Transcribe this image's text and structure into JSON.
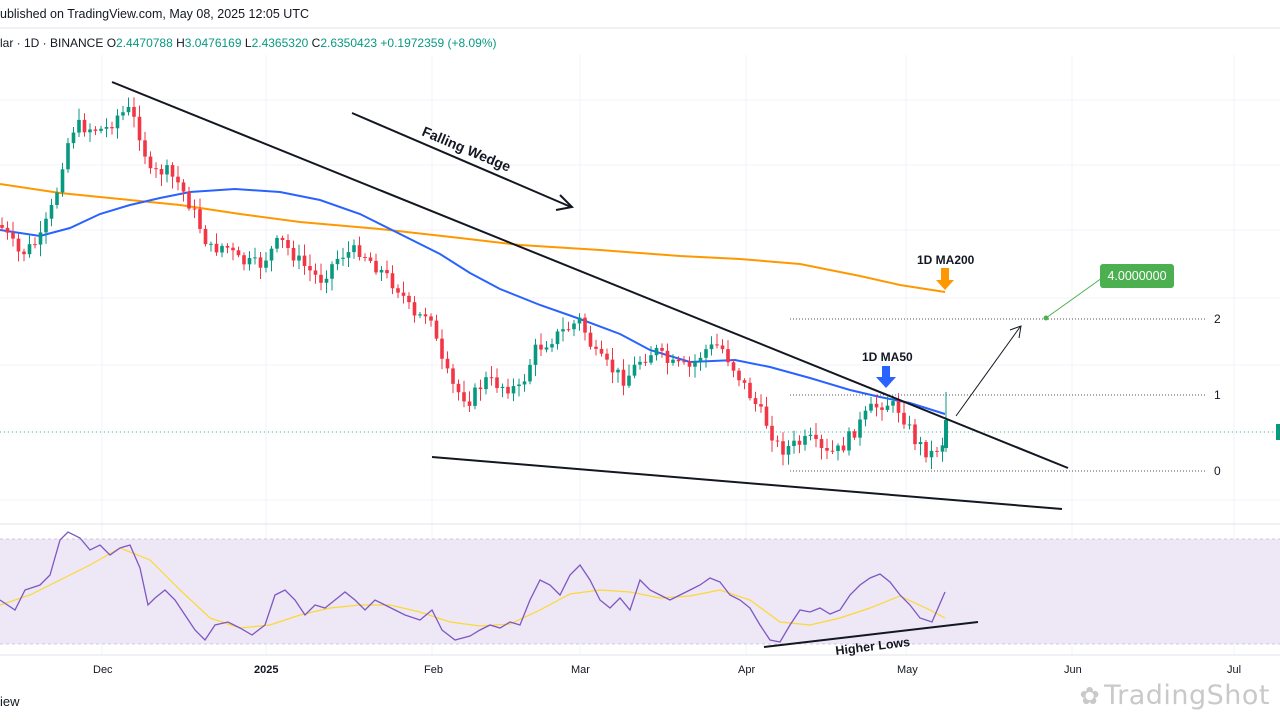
{
  "header": {
    "published": "ublished on TradingView.com, May 08, 2025 12:05 UTC",
    "symbol": "lar · 1D · BINANCE",
    "o_label": "O",
    "o_value": "2.4470788",
    "h_label": "H",
    "h_value": "3.0476169",
    "l_label": "L",
    "l_value": "2.4365320",
    "c_label": "C",
    "c_value": "2.6350423",
    "change": "+0.1972359 (+8.09%)"
  },
  "footer": {
    "left_text": "iew",
    "watermark": "TradingShot"
  },
  "colors": {
    "up": "#089981",
    "down": "#f23645",
    "ma50": "#2962ff",
    "ma200": "#ff9800",
    "rsi": "#7e57c2",
    "rsi_ma": "#fdd835",
    "rsi_bg": "#ede7f6",
    "target": "#4caf50"
  },
  "chart_data": {
    "type": "candlestick",
    "x_axis_labels": [
      "Dec",
      "2025",
      "Feb",
      "Mar",
      "Apr",
      "May",
      "Jun",
      "Jul"
    ],
    "fib_labels": [
      "2",
      "1",
      "0"
    ],
    "annotations": {
      "falling_wedge": "Falling Wedge",
      "ma200_label": "1D MA200",
      "ma50_label": "1D MA50",
      "target_value": "4.0000000",
      "higher_lows": "Higher Lows"
    },
    "series": [
      {
        "name": "1D MA50"
      },
      {
        "name": "1D MA200"
      }
    ],
    "ma50_screen": [
      [
        0,
        230
      ],
      [
        40,
        236
      ],
      [
        70,
        228
      ],
      [
        100,
        214
      ],
      [
        130,
        205
      ],
      [
        160,
        198
      ],
      [
        190,
        192
      ],
      [
        235,
        189
      ],
      [
        280,
        192
      ],
      [
        320,
        200
      ],
      [
        360,
        214
      ],
      [
        400,
        234
      ],
      [
        440,
        254
      ],
      [
        470,
        273
      ],
      [
        500,
        289
      ],
      [
        540,
        305
      ],
      [
        580,
        319
      ],
      [
        620,
        334
      ],
      [
        650,
        350
      ],
      [
        690,
        362
      ],
      [
        735,
        360
      ],
      [
        770,
        367
      ],
      [
        810,
        378
      ],
      [
        850,
        390
      ],
      [
        880,
        397
      ],
      [
        910,
        403
      ],
      [
        945,
        414
      ]
    ],
    "ma200_screen": [
      [
        0,
        184
      ],
      [
        60,
        193
      ],
      [
        120,
        199
      ],
      [
        180,
        205
      ],
      [
        240,
        214
      ],
      [
        300,
        222
      ],
      [
        380,
        229
      ],
      [
        460,
        238
      ],
      [
        520,
        245
      ],
      [
        600,
        250
      ],
      [
        680,
        256
      ],
      [
        740,
        259
      ],
      [
        800,
        264
      ],
      [
        860,
        276
      ],
      [
        900,
        285
      ],
      [
        945,
        292
      ]
    ],
    "rsi_screen": [
      [
        0,
        600
      ],
      [
        15,
        610
      ],
      [
        25,
        590
      ],
      [
        40,
        585
      ],
      [
        50,
        575
      ],
      [
        60,
        540
      ],
      [
        68,
        532
      ],
      [
        80,
        538
      ],
      [
        90,
        550
      ],
      [
        100,
        545
      ],
      [
        110,
        555
      ],
      [
        120,
        548
      ],
      [
        130,
        545
      ],
      [
        140,
        568
      ],
      [
        148,
        605
      ],
      [
        155,
        598
      ],
      [
        165,
        590
      ],
      [
        175,
        600
      ],
      [
        185,
        615
      ],
      [
        195,
        630
      ],
      [
        205,
        640
      ],
      [
        215,
        625
      ],
      [
        228,
        622
      ],
      [
        240,
        628
      ],
      [
        252,
        635
      ],
      [
        265,
        625
      ],
      [
        275,
        595
      ],
      [
        285,
        590
      ],
      [
        295,
        600
      ],
      [
        305,
        615
      ],
      [
        315,
        605
      ],
      [
        325,
        608
      ],
      [
        335,
        600
      ],
      [
        345,
        592
      ],
      [
        355,
        600
      ],
      [
        365,
        610
      ],
      [
        375,
        600
      ],
      [
        385,
        605
      ],
      [
        395,
        610
      ],
      [
        405,
        615
      ],
      [
        420,
        620
      ],
      [
        432,
        610
      ],
      [
        442,
        630
      ],
      [
        455,
        640
      ],
      [
        470,
        636
      ],
      [
        480,
        630
      ],
      [
        490,
        625
      ],
      [
        500,
        628
      ],
      [
        510,
        622
      ],
      [
        520,
        625
      ],
      [
        530,
        600
      ],
      [
        540,
        580
      ],
      [
        550,
        585
      ],
      [
        560,
        595
      ],
      [
        570,
        575
      ],
      [
        580,
        565
      ],
      [
        590,
        580
      ],
      [
        600,
        600
      ],
      [
        610,
        608
      ],
      [
        620,
        598
      ],
      [
        630,
        610
      ],
      [
        640,
        580
      ],
      [
        650,
        590
      ],
      [
        660,
        595
      ],
      [
        670,
        600
      ],
      [
        680,
        595
      ],
      [
        690,
        590
      ],
      [
        700,
        585
      ],
      [
        710,
        578
      ],
      [
        720,
        582
      ],
      [
        730,
        595
      ],
      [
        740,
        600
      ],
      [
        750,
        608
      ],
      [
        760,
        625
      ],
      [
        770,
        640
      ],
      [
        780,
        642
      ],
      [
        790,
        625
      ],
      [
        800,
        610
      ],
      [
        810,
        612
      ],
      [
        820,
        608
      ],
      [
        830,
        614
      ],
      [
        840,
        610
      ],
      [
        850,
        595
      ],
      [
        860,
        585
      ],
      [
        870,
        578
      ],
      [
        880,
        574
      ],
      [
        890,
        582
      ],
      [
        900,
        595
      ],
      [
        910,
        605
      ],
      [
        920,
        618
      ],
      [
        932,
        622
      ],
      [
        945,
        592
      ]
    ],
    "rsi_ma_screen": [
      [
        0,
        605
      ],
      [
        30,
        595
      ],
      [
        60,
        580
      ],
      [
        90,
        565
      ],
      [
        120,
        548
      ],
      [
        150,
        560
      ],
      [
        180,
        590
      ],
      [
        210,
        618
      ],
      [
        240,
        628
      ],
      [
        270,
        625
      ],
      [
        300,
        615
      ],
      [
        330,
        608
      ],
      [
        360,
        605
      ],
      [
        390,
        605
      ],
      [
        420,
        612
      ],
      [
        450,
        622
      ],
      [
        480,
        626
      ],
      [
        510,
        624
      ],
      [
        540,
        610
      ],
      [
        570,
        594
      ],
      [
        600,
        590
      ],
      [
        630,
        592
      ],
      [
        660,
        598
      ],
      [
        690,
        596
      ],
      [
        720,
        590
      ],
      [
        750,
        600
      ],
      [
        780,
        622
      ],
      [
        810,
        625
      ],
      [
        840,
        618
      ],
      [
        870,
        608
      ],
      [
        900,
        596
      ],
      [
        930,
        610
      ],
      [
        945,
        618
      ]
    ]
  }
}
